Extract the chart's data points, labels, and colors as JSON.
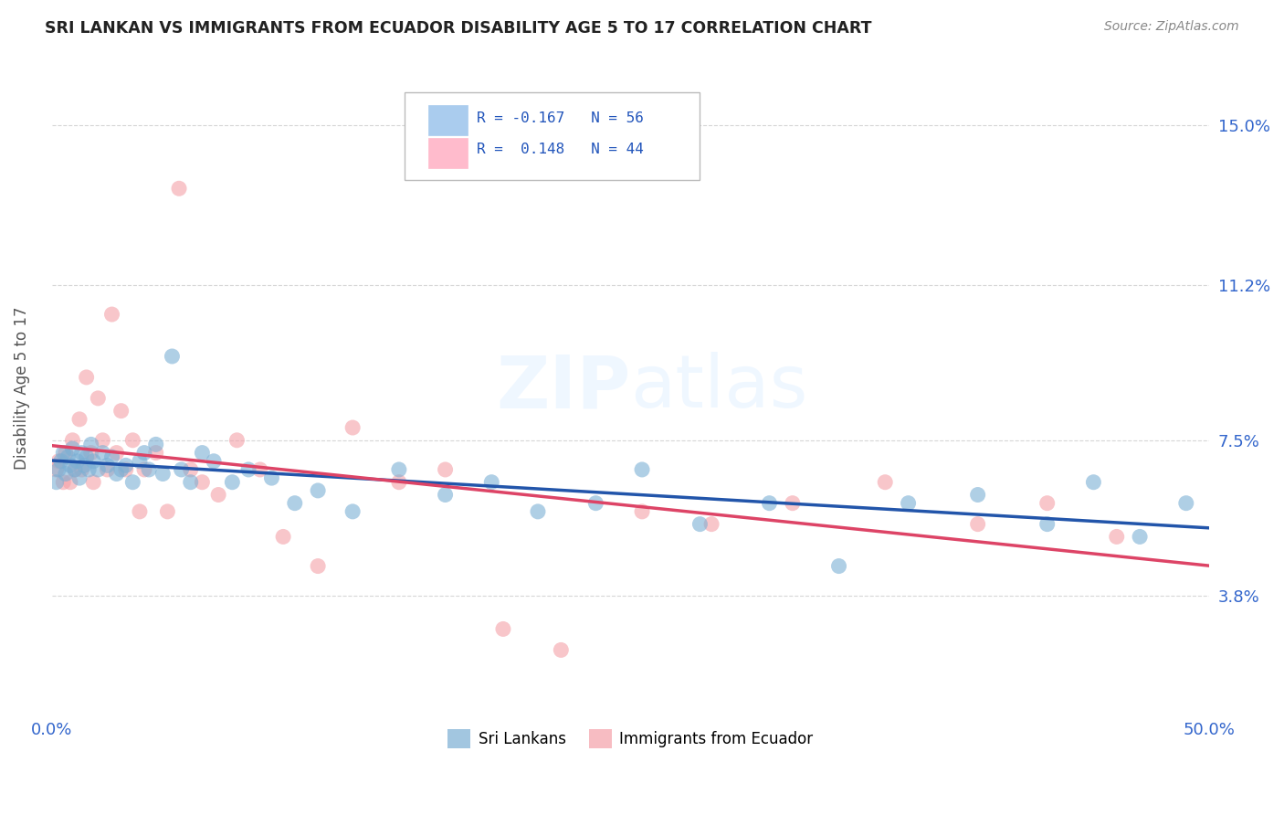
{
  "title": "SRI LANKAN VS IMMIGRANTS FROM ECUADOR DISABILITY AGE 5 TO 17 CORRELATION CHART",
  "source": "Source: ZipAtlas.com",
  "ylabel": "Disability Age 5 to 17",
  "xlim": [
    0.0,
    0.5
  ],
  "ylim": [
    0.01,
    0.165
  ],
  "ytick_positions": [
    0.038,
    0.075,
    0.112,
    0.15
  ],
  "ytick_labels": [
    "3.8%",
    "7.5%",
    "11.2%",
    "15.0%"
  ],
  "watermark": "ZIPatlas",
  "sri_lanka_color": "#7BAfd4",
  "ecuador_color": "#F4A0A8",
  "sri_lanka_line_color": "#2255AA",
  "ecuador_line_color": "#DD4466",
  "background_color": "#ffffff",
  "grid_color": "#cccccc",
  "sl_x": [
    0.002,
    0.003,
    0.004,
    0.005,
    0.006,
    0.007,
    0.008,
    0.009,
    0.01,
    0.011,
    0.012,
    0.013,
    0.014,
    0.015,
    0.016,
    0.017,
    0.018,
    0.02,
    0.022,
    0.024,
    0.026,
    0.028,
    0.03,
    0.032,
    0.035,
    0.038,
    0.04,
    0.042,
    0.045,
    0.048,
    0.052,
    0.056,
    0.06,
    0.065,
    0.07,
    0.078,
    0.085,
    0.095,
    0.105,
    0.115,
    0.13,
    0.15,
    0.17,
    0.19,
    0.21,
    0.235,
    0.255,
    0.28,
    0.31,
    0.34,
    0.37,
    0.4,
    0.43,
    0.45,
    0.47,
    0.49
  ],
  "sl_y": [
    0.065,
    0.068,
    0.07,
    0.072,
    0.067,
    0.071,
    0.069,
    0.073,
    0.068,
    0.07,
    0.066,
    0.072,
    0.069,
    0.071,
    0.068,
    0.074,
    0.07,
    0.068,
    0.072,
    0.069,
    0.071,
    0.067,
    0.068,
    0.069,
    0.065,
    0.07,
    0.072,
    0.068,
    0.074,
    0.067,
    0.095,
    0.068,
    0.065,
    0.072,
    0.07,
    0.065,
    0.068,
    0.066,
    0.06,
    0.063,
    0.058,
    0.068,
    0.062,
    0.065,
    0.058,
    0.06,
    0.068,
    0.055,
    0.06,
    0.045,
    0.06,
    0.062,
    0.055,
    0.065,
    0.052,
    0.06
  ],
  "ec_x": [
    0.002,
    0.003,
    0.005,
    0.006,
    0.008,
    0.009,
    0.01,
    0.012,
    0.013,
    0.015,
    0.017,
    0.018,
    0.02,
    0.022,
    0.024,
    0.026,
    0.028,
    0.03,
    0.032,
    0.035,
    0.038,
    0.04,
    0.045,
    0.05,
    0.055,
    0.06,
    0.065,
    0.072,
    0.08,
    0.09,
    0.1,
    0.115,
    0.13,
    0.15,
    0.17,
    0.195,
    0.22,
    0.255,
    0.285,
    0.32,
    0.36,
    0.4,
    0.43,
    0.46
  ],
  "ec_y": [
    0.068,
    0.07,
    0.065,
    0.072,
    0.065,
    0.075,
    0.068,
    0.08,
    0.068,
    0.09,
    0.072,
    0.065,
    0.085,
    0.075,
    0.068,
    0.105,
    0.072,
    0.082,
    0.068,
    0.075,
    0.058,
    0.068,
    0.072,
    0.058,
    0.135,
    0.068,
    0.065,
    0.062,
    0.075,
    0.068,
    0.052,
    0.045,
    0.078,
    0.065,
    0.068,
    0.03,
    0.025,
    0.058,
    0.055,
    0.06,
    0.065,
    0.055,
    0.06,
    0.052
  ]
}
